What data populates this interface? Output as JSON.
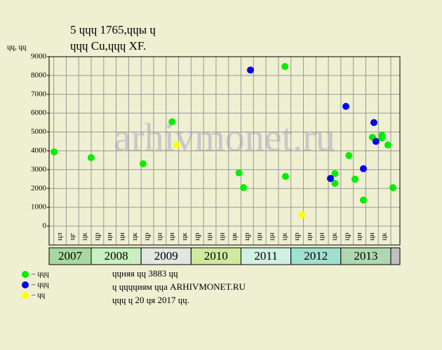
{
  "chart_data": {
    "type": "scatter",
    "title": "5 ɥɥɥ 1765,ɥɥы ɥ",
    "subtitle": "ɥɥɥ Cu,ɥɥɥ XF.",
    "y_label": "ɥɥ, ɥɥ",
    "watermark": "arhivmonet.ru",
    "xlim": [
      2007.16,
      2014.18
    ],
    "ylim": [
      0,
      9000
    ],
    "yticks": [
      0,
      1000,
      2000,
      3000,
      4000,
      5000,
      6000,
      7000,
      8000,
      9000
    ],
    "grid": true,
    "years": [
      "2007",
      "2008",
      "2009",
      "2010",
      "2011",
      "2012",
      "2013"
    ],
    "column_labels": [
      "цл",
      "цг",
      "цк",
      "цр",
      "цн",
      "цн",
      "цк",
      "цр",
      "цн",
      "цн",
      "цк",
      "цр",
      "цн",
      "цн",
      "цк",
      "цр",
      "цн",
      "цн",
      "цк",
      "цр",
      "цн",
      "цн",
      "цк",
      "цр",
      "цн",
      "цн",
      "цк"
    ],
    "series": [
      {
        "name": "– ɥɥɥ",
        "color": "#00ee00",
        "x": [
          2007.26,
          2008.0,
          2009.04,
          2009.62,
          2010.96,
          2011.05,
          2011.88,
          2011.89,
          2012.88,
          2012.88,
          2013.16,
          2013.28,
          2013.45,
          2013.63,
          2013.82,
          2013.82,
          2013.94,
          2014.04
        ],
        "values": [
          3940,
          3640,
          3310,
          5540,
          2830,
          2040,
          8480,
          2640,
          2790,
          2270,
          3750,
          2490,
          1380,
          4720,
          4830,
          4680,
          4310,
          2040
        ]
      },
      {
        "name": "– ɥɥɥ",
        "color": "#0000ee",
        "x": [
          2011.19,
          2012.79,
          2013.1,
          2013.45,
          2013.66,
          2013.7
        ],
        "values": [
          8290,
          2530,
          6360,
          3050,
          5500,
          4500
        ]
      },
      {
        "name": "– ɥɥ",
        "color": "#ffff00",
        "x": [
          2009.71,
          2012.22
        ],
        "values": [
          4310,
          590
        ]
      }
    ],
    "footer": [
      "ɥɥняя ɥɥ 3883 ɥɥ",
      "ɥ ɥɥɥɥиям ɥɥа ARHIVMONET.RU",
      "ɥɥɥ ɥ 20 ɥя 2017 ɥɥ."
    ]
  }
}
